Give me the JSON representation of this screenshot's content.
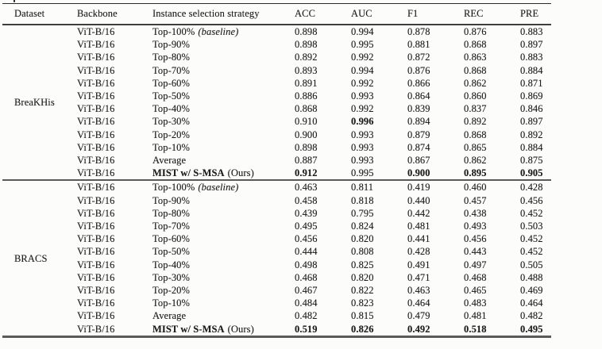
{
  "colors": {
    "background": "#fcfcfb",
    "text": "#1d1d1d",
    "rule_dark": "#2b2b2b",
    "rule_medium": "#3f3f3f",
    "rule_gray": "#5a5a5a"
  },
  "table": {
    "columns": [
      "Dataset",
      "Backbone",
      "Instance selection strategy",
      "ACC",
      "AUC",
      "F1",
      "REC",
      "PRE"
    ],
    "sections": [
      {
        "dataset": "BreaKHis",
        "rows": [
          {
            "backbone": "ViT-B/16",
            "strategy": "Top-100%",
            "note": "(baseline)",
            "note_italic": true,
            "strategy_bold": false,
            "values": [
              "0.898",
              "0.994",
              "0.878",
              "0.876",
              "0.883"
            ],
            "bold": []
          },
          {
            "backbone": "ViT-B/16",
            "strategy": "Top-90%",
            "note": "",
            "note_italic": false,
            "strategy_bold": false,
            "values": [
              "0.898",
              "0.995",
              "0.881",
              "0.868",
              "0.897"
            ],
            "bold": []
          },
          {
            "backbone": "ViT-B/16",
            "strategy": "Top-80%",
            "note": "",
            "note_italic": false,
            "strategy_bold": false,
            "values": [
              "0.892",
              "0.992",
              "0.872",
              "0.863",
              "0.883"
            ],
            "bold": []
          },
          {
            "backbone": "ViT-B/16",
            "strategy": "Top-70%",
            "note": "",
            "note_italic": false,
            "strategy_bold": false,
            "values": [
              "0.893",
              "0.994",
              "0.876",
              "0.868",
              "0.884"
            ],
            "bold": []
          },
          {
            "backbone": "ViT-B/16",
            "strategy": "Top-60%",
            "note": "",
            "note_italic": false,
            "strategy_bold": false,
            "values": [
              "0.891",
              "0.992",
              "0.866",
              "0.862",
              "0.871"
            ],
            "bold": []
          },
          {
            "backbone": "ViT-B/16",
            "strategy": "Top-50%",
            "note": "",
            "note_italic": false,
            "strategy_bold": false,
            "values": [
              "0.886",
              "0.993",
              "0.864",
              "0.860",
              "0.869"
            ],
            "bold": []
          },
          {
            "backbone": "ViT-B/16",
            "strategy": "Top-40%",
            "note": "",
            "note_italic": false,
            "strategy_bold": false,
            "values": [
              "0.868",
              "0.992",
              "0.839",
              "0.837",
              "0.846"
            ],
            "bold": []
          },
          {
            "backbone": "ViT-B/16",
            "strategy": "Top-30%",
            "note": "",
            "note_italic": false,
            "strategy_bold": false,
            "values": [
              "0.910",
              "0.996",
              "0.894",
              "0.892",
              "0.897"
            ],
            "bold": [
              1
            ]
          },
          {
            "backbone": "ViT-B/16",
            "strategy": "Top-20%",
            "note": "",
            "note_italic": false,
            "strategy_bold": false,
            "values": [
              "0.900",
              "0.993",
              "0.879",
              "0.868",
              "0.892"
            ],
            "bold": []
          },
          {
            "backbone": "ViT-B/16",
            "strategy": "Top-10%",
            "note": "",
            "note_italic": false,
            "strategy_bold": false,
            "values": [
              "0.898",
              "0.993",
              "0.874",
              "0.865",
              "0.884"
            ],
            "bold": []
          },
          {
            "backbone": "ViT-B/16",
            "strategy": "Average",
            "note": "",
            "note_italic": false,
            "strategy_bold": false,
            "values": [
              "0.887",
              "0.993",
              "0.867",
              "0.862",
              "0.875"
            ],
            "bold": []
          },
          {
            "backbone": "ViT-B/16",
            "strategy": "MIST w/ S-MSA",
            "note": "(Ours)",
            "note_italic": false,
            "strategy_bold": true,
            "values": [
              "0.912",
              "0.995",
              "0.900",
              "0.895",
              "0.905"
            ],
            "bold": [
              0,
              2,
              3,
              4
            ]
          }
        ]
      },
      {
        "dataset": "BRACS",
        "rows": [
          {
            "backbone": "ViT-B/16",
            "strategy": "Top-100%",
            "note": "(baseline)",
            "note_italic": true,
            "strategy_bold": false,
            "values": [
              "0.463",
              "0.811",
              "0.419",
              "0.460",
              "0.428"
            ],
            "bold": []
          },
          {
            "backbone": "ViT-B/16",
            "strategy": "Top-90%",
            "note": "",
            "note_italic": false,
            "strategy_bold": false,
            "values": [
              "0.458",
              "0.818",
              "0.440",
              "0.457",
              "0.456"
            ],
            "bold": []
          },
          {
            "backbone": "ViT-B/16",
            "strategy": "Top-80%",
            "note": "",
            "note_italic": false,
            "strategy_bold": false,
            "values": [
              "0.439",
              "0.795",
              "0.442",
              "0.438",
              "0.452"
            ],
            "bold": []
          },
          {
            "backbone": "ViT-B/16",
            "strategy": "Top-70%",
            "note": "",
            "note_italic": false,
            "strategy_bold": false,
            "values": [
              "0.495",
              "0.824",
              "0.481",
              "0.493",
              "0.503"
            ],
            "bold": []
          },
          {
            "backbone": "ViT-B/16",
            "strategy": "Top-60%",
            "note": "",
            "note_italic": false,
            "strategy_bold": false,
            "values": [
              "0.456",
              "0.820",
              "0.441",
              "0.456",
              "0.452"
            ],
            "bold": []
          },
          {
            "backbone": "ViT-B/16",
            "strategy": "Top-50%",
            "note": "",
            "note_italic": false,
            "strategy_bold": false,
            "values": [
              "0.444",
              "0.808",
              "0.428",
              "0.443",
              "0.452"
            ],
            "bold": []
          },
          {
            "backbone": "ViT-B/16",
            "strategy": "Top-40%",
            "note": "",
            "note_italic": false,
            "strategy_bold": false,
            "values": [
              "0.498",
              "0.825",
              "0.491",
              "0.497",
              "0.505"
            ],
            "bold": []
          },
          {
            "backbone": "ViT-B/16",
            "strategy": "Top-30%",
            "note": "",
            "note_italic": false,
            "strategy_bold": false,
            "values": [
              "0.468",
              "0.820",
              "0.471",
              "0.468",
              "0.488"
            ],
            "bold": []
          },
          {
            "backbone": "ViT-B/16",
            "strategy": "Top-20%",
            "note": "",
            "note_italic": false,
            "strategy_bold": false,
            "values": [
              "0.467",
              "0.822",
              "0.463",
              "0.465",
              "0.469"
            ],
            "bold": []
          },
          {
            "backbone": "ViT-B/16",
            "strategy": "Top-10%",
            "note": "",
            "note_italic": false,
            "strategy_bold": false,
            "values": [
              "0.484",
              "0.823",
              "0.464",
              "0.483",
              "0.464"
            ],
            "bold": []
          },
          {
            "backbone": "ViT-B/16",
            "strategy": "Average",
            "note": "",
            "note_italic": false,
            "strategy_bold": false,
            "values": [
              "0.482",
              "0.815",
              "0.479",
              "0.481",
              "0.482"
            ],
            "bold": []
          },
          {
            "backbone": "ViT-B/16",
            "strategy": "MIST w/ S-MSA",
            "note": "(Ours)",
            "note_italic": false,
            "strategy_bold": true,
            "values": [
              "0.519",
              "0.826",
              "0.492",
              "0.518",
              "0.495"
            ],
            "bold": [
              0,
              1,
              2,
              3,
              4
            ]
          }
        ]
      }
    ]
  }
}
